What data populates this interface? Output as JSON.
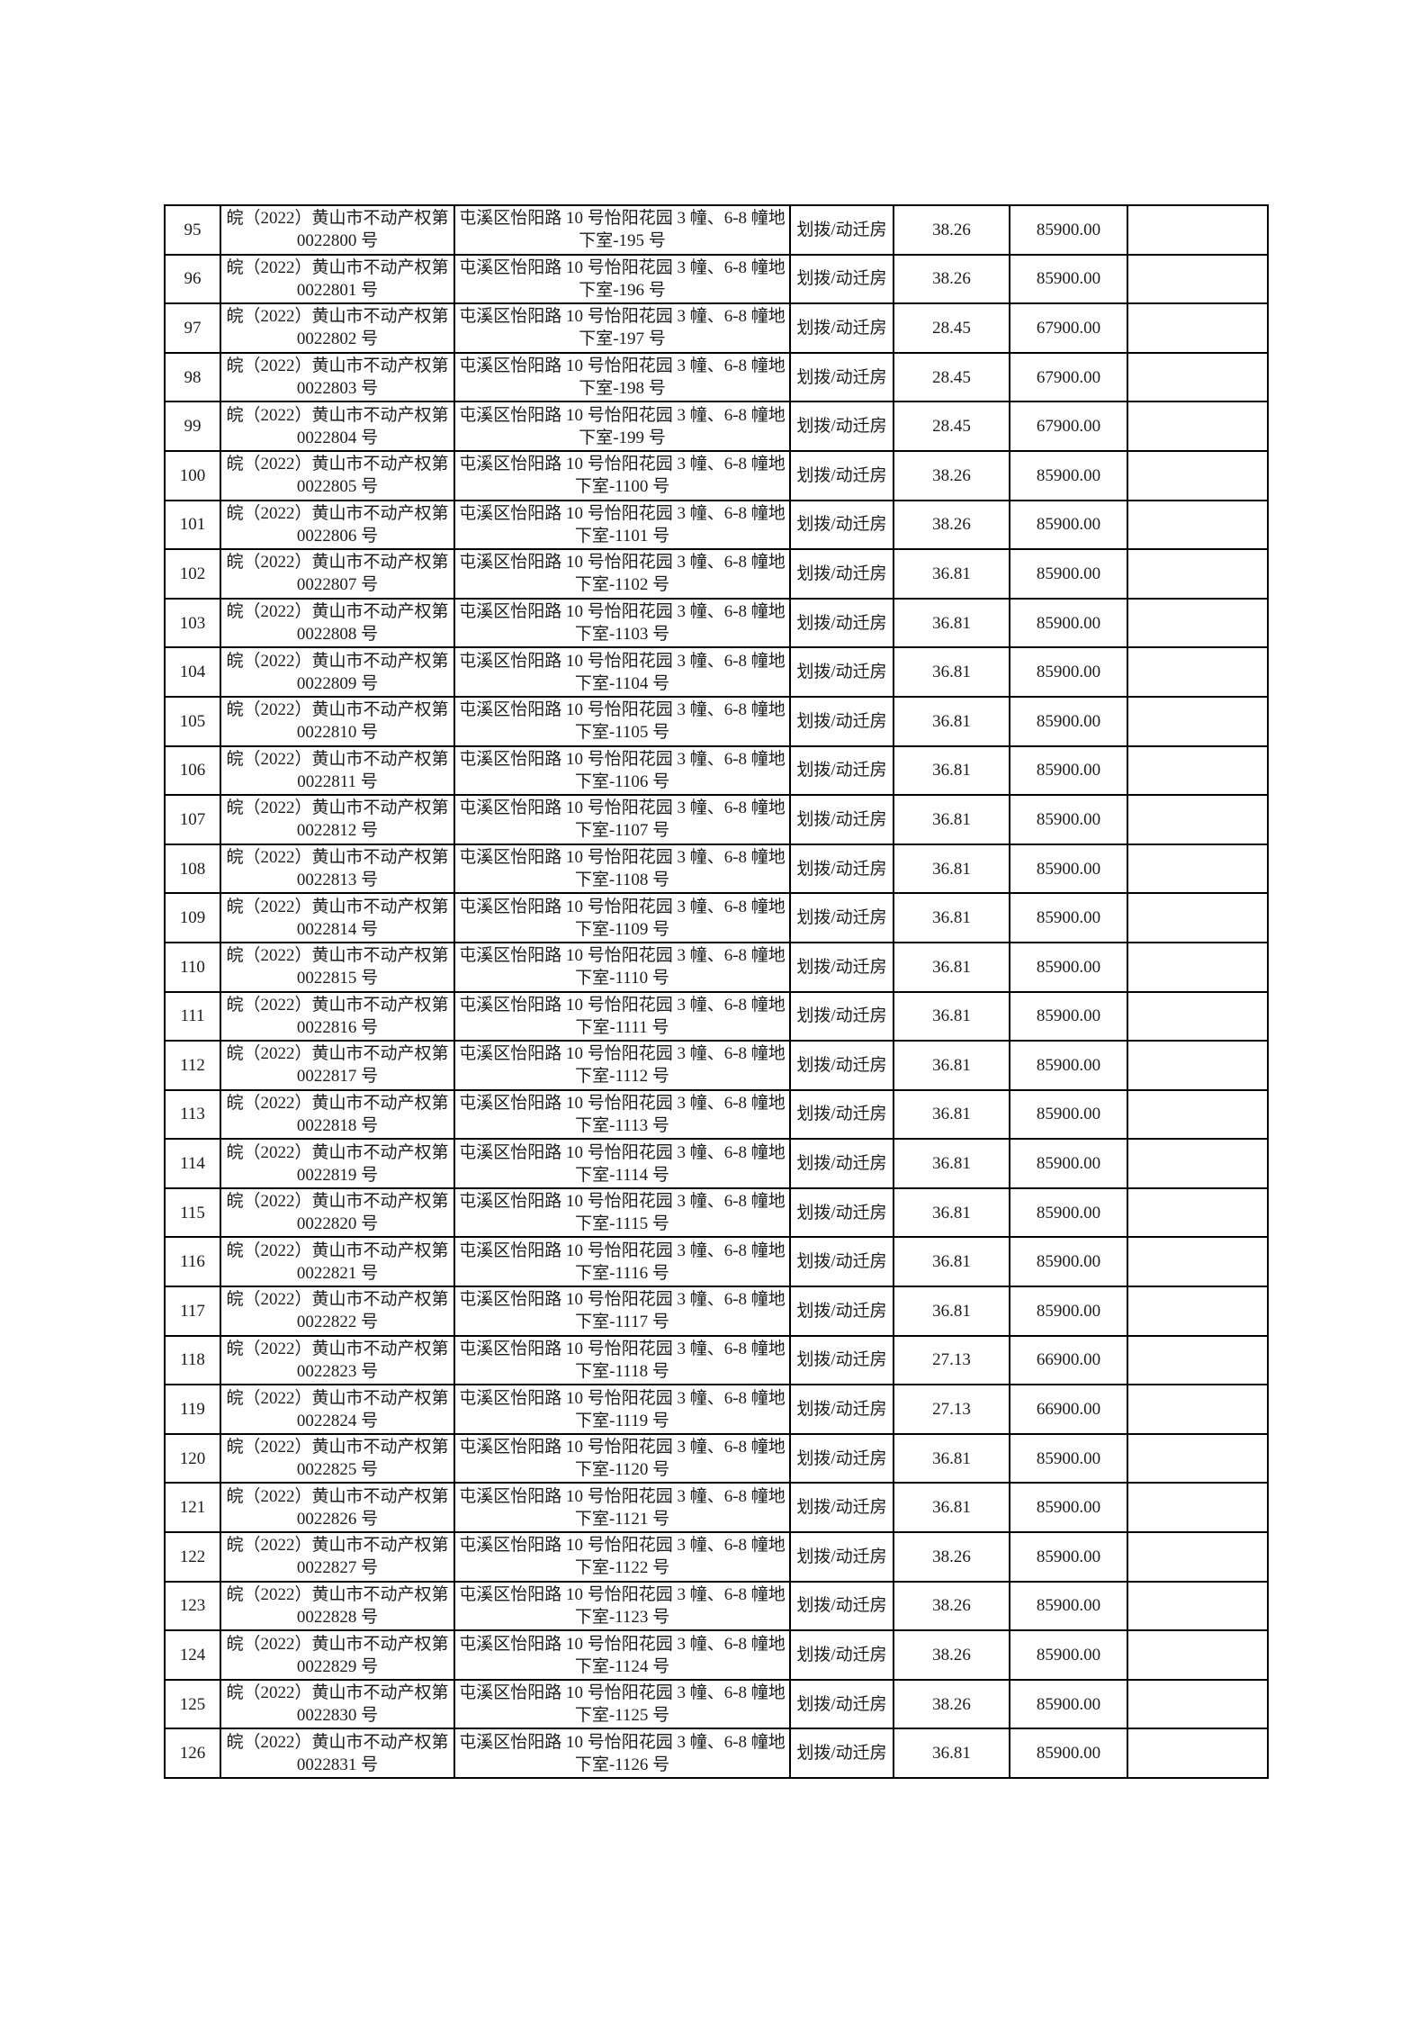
{
  "page": {
    "background_color": "#ffffff",
    "text_color": "#1c1c1c",
    "table_border_color": "#000000"
  },
  "table": {
    "columns": [
      {
        "key": "num",
        "name": "row-number-cell"
      },
      {
        "key": "cert",
        "name": "certificate-number-cell"
      },
      {
        "key": "addr",
        "name": "address-cell"
      },
      {
        "key": "type",
        "name": "land-use-type-cell"
      },
      {
        "key": "area",
        "name": "area-cell"
      },
      {
        "key": "price",
        "name": "price-cell"
      },
      {
        "key": "note",
        "name": "empty-note-cell"
      }
    ],
    "rows": [
      {
        "num": "95",
        "cert": "皖（2022）黄山市不动产权第 0022800 号",
        "addr": "屯溪区怡阳路 10 号怡阳花园 3 幢、6-8 幢地下室-195 号",
        "type": "划拨/动迁房",
        "area": "38.26",
        "price": "85900.00",
        "note": ""
      },
      {
        "num": "96",
        "cert": "皖（2022）黄山市不动产权第 0022801 号",
        "addr": "屯溪区怡阳路 10 号怡阳花园 3 幢、6-8 幢地下室-196 号",
        "type": "划拨/动迁房",
        "area": "38.26",
        "price": "85900.00",
        "note": ""
      },
      {
        "num": "97",
        "cert": "皖（2022）黄山市不动产权第 0022802 号",
        "addr": "屯溪区怡阳路 10 号怡阳花园 3 幢、6-8 幢地下室-197 号",
        "type": "划拨/动迁房",
        "area": "28.45",
        "price": "67900.00",
        "note": ""
      },
      {
        "num": "98",
        "cert": "皖（2022）黄山市不动产权第 0022803 号",
        "addr": "屯溪区怡阳路 10 号怡阳花园 3 幢、6-8 幢地下室-198 号",
        "type": "划拨/动迁房",
        "area": "28.45",
        "price": "67900.00",
        "note": ""
      },
      {
        "num": "99",
        "cert": "皖（2022）黄山市不动产权第 0022804 号",
        "addr": "屯溪区怡阳路 10 号怡阳花园 3 幢、6-8 幢地下室-199 号",
        "type": "划拨/动迁房",
        "area": "28.45",
        "price": "67900.00",
        "note": ""
      },
      {
        "num": "100",
        "cert": "皖（2022）黄山市不动产权第 0022805 号",
        "addr": "屯溪区怡阳路 10 号怡阳花园 3 幢、6-8 幢地下室-1100 号",
        "type": "划拨/动迁房",
        "area": "38.26",
        "price": "85900.00",
        "note": ""
      },
      {
        "num": "101",
        "cert": "皖（2022）黄山市不动产权第 0022806 号",
        "addr": "屯溪区怡阳路 10 号怡阳花园 3 幢、6-8 幢地下室-1101 号",
        "type": "划拨/动迁房",
        "area": "38.26",
        "price": "85900.00",
        "note": ""
      },
      {
        "num": "102",
        "cert": "皖（2022）黄山市不动产权第 0022807 号",
        "addr": "屯溪区怡阳路 10 号怡阳花园 3 幢、6-8 幢地下室-1102 号",
        "type": "划拨/动迁房",
        "area": "36.81",
        "price": "85900.00",
        "note": ""
      },
      {
        "num": "103",
        "cert": "皖（2022）黄山市不动产权第 0022808 号",
        "addr": "屯溪区怡阳路 10 号怡阳花园 3 幢、6-8 幢地下室-1103 号",
        "type": "划拨/动迁房",
        "area": "36.81",
        "price": "85900.00",
        "note": ""
      },
      {
        "num": "104",
        "cert": "皖（2022）黄山市不动产权第 0022809 号",
        "addr": "屯溪区怡阳路 10 号怡阳花园 3 幢、6-8 幢地下室-1104 号",
        "type": "划拨/动迁房",
        "area": "36.81",
        "price": "85900.00",
        "note": ""
      },
      {
        "num": "105",
        "cert": "皖（2022）黄山市不动产权第 0022810 号",
        "addr": "屯溪区怡阳路 10 号怡阳花园 3 幢、6-8 幢地下室-1105 号",
        "type": "划拨/动迁房",
        "area": "36.81",
        "price": "85900.00",
        "note": ""
      },
      {
        "num": "106",
        "cert": "皖（2022）黄山市不动产权第 0022811 号",
        "addr": "屯溪区怡阳路 10 号怡阳花园 3 幢、6-8 幢地下室-1106 号",
        "type": "划拨/动迁房",
        "area": "36.81",
        "price": "85900.00",
        "note": ""
      },
      {
        "num": "107",
        "cert": "皖（2022）黄山市不动产权第 0022812 号",
        "addr": "屯溪区怡阳路 10 号怡阳花园 3 幢、6-8 幢地下室-1107 号",
        "type": "划拨/动迁房",
        "area": "36.81",
        "price": "85900.00",
        "note": ""
      },
      {
        "num": "108",
        "cert": "皖（2022）黄山市不动产权第 0022813 号",
        "addr": "屯溪区怡阳路 10 号怡阳花园 3 幢、6-8 幢地下室-1108 号",
        "type": "划拨/动迁房",
        "area": "36.81",
        "price": "85900.00",
        "note": ""
      },
      {
        "num": "109",
        "cert": "皖（2022）黄山市不动产权第 0022814 号",
        "addr": "屯溪区怡阳路 10 号怡阳花园 3 幢、6-8 幢地下室-1109 号",
        "type": "划拨/动迁房",
        "area": "36.81",
        "price": "85900.00",
        "note": ""
      },
      {
        "num": "110",
        "cert": "皖（2022）黄山市不动产权第 0022815 号",
        "addr": "屯溪区怡阳路 10 号怡阳花园 3 幢、6-8 幢地下室-1110 号",
        "type": "划拨/动迁房",
        "area": "36.81",
        "price": "85900.00",
        "note": ""
      },
      {
        "num": "111",
        "cert": "皖（2022）黄山市不动产权第 0022816 号",
        "addr": "屯溪区怡阳路 10 号怡阳花园 3 幢、6-8 幢地下室-1111 号",
        "type": "划拨/动迁房",
        "area": "36.81",
        "price": "85900.00",
        "note": ""
      },
      {
        "num": "112",
        "cert": "皖（2022）黄山市不动产权第 0022817 号",
        "addr": "屯溪区怡阳路 10 号怡阳花园 3 幢、6-8 幢地下室-1112 号",
        "type": "划拨/动迁房",
        "area": "36.81",
        "price": "85900.00",
        "note": ""
      },
      {
        "num": "113",
        "cert": "皖（2022）黄山市不动产权第 0022818 号",
        "addr": "屯溪区怡阳路 10 号怡阳花园 3 幢、6-8 幢地下室-1113 号",
        "type": "划拨/动迁房",
        "area": "36.81",
        "price": "85900.00",
        "note": ""
      },
      {
        "num": "114",
        "cert": "皖（2022）黄山市不动产权第 0022819 号",
        "addr": "屯溪区怡阳路 10 号怡阳花园 3 幢、6-8 幢地下室-1114 号",
        "type": "划拨/动迁房",
        "area": "36.81",
        "price": "85900.00",
        "note": ""
      },
      {
        "num": "115",
        "cert": "皖（2022）黄山市不动产权第 0022820 号",
        "addr": "屯溪区怡阳路 10 号怡阳花园 3 幢、6-8 幢地下室-1115 号",
        "type": "划拨/动迁房",
        "area": "36.81",
        "price": "85900.00",
        "note": ""
      },
      {
        "num": "116",
        "cert": "皖（2022）黄山市不动产权第 0022821 号",
        "addr": "屯溪区怡阳路 10 号怡阳花园 3 幢、6-8 幢地下室-1116 号",
        "type": "划拨/动迁房",
        "area": "36.81",
        "price": "85900.00",
        "note": ""
      },
      {
        "num": "117",
        "cert": "皖（2022）黄山市不动产权第 0022822 号",
        "addr": "屯溪区怡阳路 10 号怡阳花园 3 幢、6-8 幢地下室-1117 号",
        "type": "划拨/动迁房",
        "area": "36.81",
        "price": "85900.00",
        "note": ""
      },
      {
        "num": "118",
        "cert": "皖（2022）黄山市不动产权第 0022823 号",
        "addr": "屯溪区怡阳路 10 号怡阳花园 3 幢、6-8 幢地下室-1118 号",
        "type": "划拨/动迁房",
        "area": "27.13",
        "price": "66900.00",
        "note": ""
      },
      {
        "num": "119",
        "cert": "皖（2022）黄山市不动产权第 0022824 号",
        "addr": "屯溪区怡阳路 10 号怡阳花园 3 幢、6-8 幢地下室-1119 号",
        "type": "划拨/动迁房",
        "area": "27.13",
        "price": "66900.00",
        "note": ""
      },
      {
        "num": "120",
        "cert": "皖（2022）黄山市不动产权第 0022825 号",
        "addr": "屯溪区怡阳路 10 号怡阳花园 3 幢、6-8 幢地下室-1120 号",
        "type": "划拨/动迁房",
        "area": "36.81",
        "price": "85900.00",
        "note": ""
      },
      {
        "num": "121",
        "cert": "皖（2022）黄山市不动产权第 0022826 号",
        "addr": "屯溪区怡阳路 10 号怡阳花园 3 幢、6-8 幢地下室-1121 号",
        "type": "划拨/动迁房",
        "area": "36.81",
        "price": "85900.00",
        "note": ""
      },
      {
        "num": "122",
        "cert": "皖（2022）黄山市不动产权第 0022827 号",
        "addr": "屯溪区怡阳路 10 号怡阳花园 3 幢、6-8 幢地下室-1122 号",
        "type": "划拨/动迁房",
        "area": "38.26",
        "price": "85900.00",
        "note": ""
      },
      {
        "num": "123",
        "cert": "皖（2022）黄山市不动产权第 0022828 号",
        "addr": "屯溪区怡阳路 10 号怡阳花园 3 幢、6-8 幢地下室-1123 号",
        "type": "划拨/动迁房",
        "area": "38.26",
        "price": "85900.00",
        "note": ""
      },
      {
        "num": "124",
        "cert": "皖（2022）黄山市不动产权第 0022829 号",
        "addr": "屯溪区怡阳路 10 号怡阳花园 3 幢、6-8 幢地下室-1124 号",
        "type": "划拨/动迁房",
        "area": "38.26",
        "price": "85900.00",
        "note": ""
      },
      {
        "num": "125",
        "cert": "皖（2022）黄山市不动产权第 0022830 号",
        "addr": "屯溪区怡阳路 10 号怡阳花园 3 幢、6-8 幢地下室-1125 号",
        "type": "划拨/动迁房",
        "area": "38.26",
        "price": "85900.00",
        "note": ""
      },
      {
        "num": "126",
        "cert": "皖（2022）黄山市不动产权第 0022831 号",
        "addr": "屯溪区怡阳路 10 号怡阳花园 3 幢、6-8 幢地下室-1126 号",
        "type": "划拨/动迁房",
        "area": "36.81",
        "price": "85900.00",
        "note": ""
      }
    ]
  }
}
